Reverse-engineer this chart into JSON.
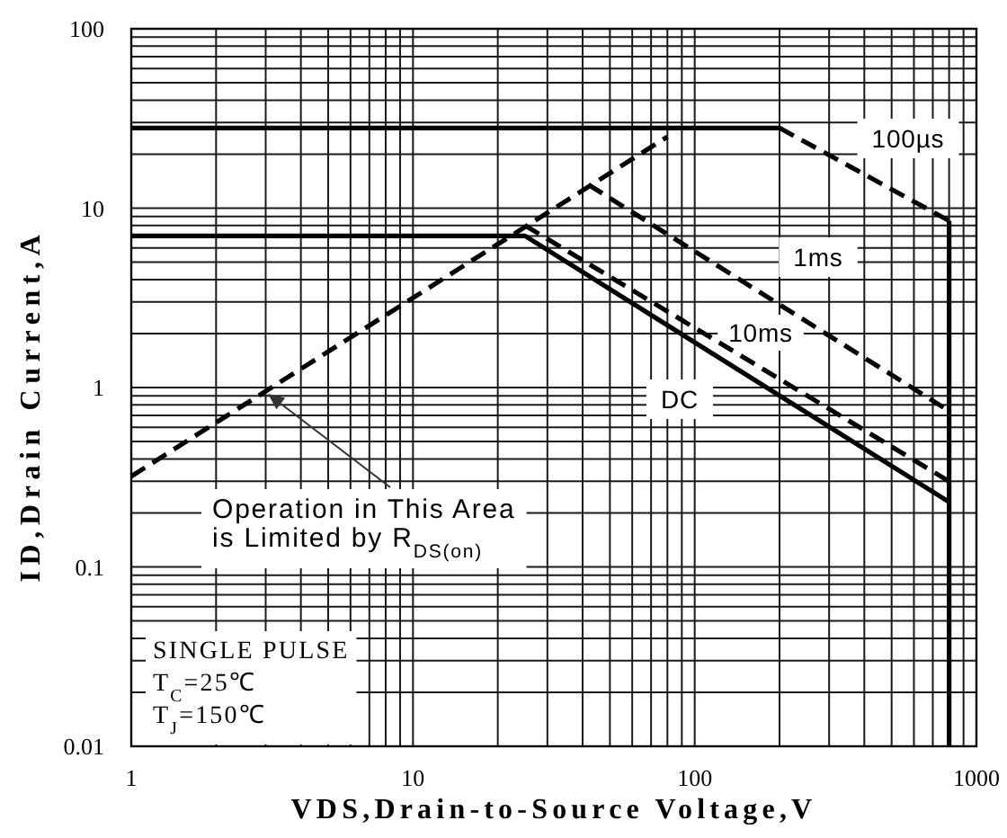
{
  "chart_data": {
    "type": "line",
    "xlabel": "VDS,Drain-to-Source Voltage,V",
    "ylabel": "ID,Drain Current,A",
    "log": "xy",
    "grid": true,
    "xlim": [
      1,
      1000
    ],
    "ylim": [
      0.01,
      100
    ],
    "xticks": [
      1,
      {
        "value": 2,
        "label": null
      },
      {
        "value": 3,
        "label": null
      },
      {
        "value": 4,
        "label": null
      },
      {
        "value": 5,
        "label": null
      },
      {
        "value": 6,
        "label": null
      },
      {
        "value": 7,
        "label": null
      },
      {
        "value": 8,
        "label": null
      },
      {
        "value": 9,
        "label": null
      },
      10,
      {
        "value": 20,
        "label": null
      },
      {
        "value": 30,
        "label": null
      },
      {
        "value": 40,
        "label": null
      },
      {
        "value": 50,
        "label": null
      },
      {
        "value": 60,
        "label": null
      },
      {
        "value": 70,
        "label": null
      },
      {
        "value": 80,
        "label": null
      },
      {
        "value": 90,
        "label": null
      },
      100,
      {
        "value": 200,
        "label": null
      },
      {
        "value": 300,
        "label": null
      },
      {
        "value": 400,
        "label": null
      },
      {
        "value": 500,
        "label": null
      },
      {
        "value": 600,
        "label": null
      },
      {
        "value": 700,
        "label": null
      },
      {
        "value": 800,
        "label": null
      },
      {
        "value": 900,
        "label": null
      },
      1000
    ],
    "yticks": [
      0.01,
      {
        "value": 0.02,
        "label": null
      },
      {
        "value": 0.03,
        "label": null
      },
      {
        "value": 0.04,
        "label": null
      },
      {
        "value": 0.05,
        "label": null
      },
      {
        "value": 0.06,
        "label": null
      },
      {
        "value": 0.07,
        "label": null
      },
      {
        "value": 0.08,
        "label": null
      },
      {
        "value": 0.09,
        "label": null
      },
      0.1,
      {
        "value": 0.2,
        "label": null
      },
      {
        "value": 0.3,
        "label": null
      },
      {
        "value": 0.4,
        "label": null
      },
      {
        "value": 0.5,
        "label": null
      },
      {
        "value": 0.6,
        "label": null
      },
      {
        "value": 0.7,
        "label": null
      },
      {
        "value": 0.8,
        "label": null
      },
      {
        "value": 0.9,
        "label": null
      },
      1,
      {
        "value": 2,
        "label": null
      },
      {
        "value": 3,
        "label": null
      },
      {
        "value": 4,
        "label": null
      },
      {
        "value": 5,
        "label": null
      },
      {
        "value": 6,
        "label": null
      },
      {
        "value": 7,
        "label": null
      },
      {
        "value": 8,
        "label": null
      },
      {
        "value": 9,
        "label": null
      },
      10,
      {
        "value": 20,
        "label": null
      },
      {
        "value": 30,
        "label": null
      },
      {
        "value": 40,
        "label": null
      },
      {
        "value": 50,
        "label": null
      },
      {
        "value": 60,
        "label": null
      },
      {
        "value": 70,
        "label": null
      },
      {
        "value": 80,
        "label": null
      },
      {
        "value": 90,
        "label": null
      },
      100
    ],
    "series": [
      {
        "color": "#000000",
        "line_style": "dashed",
        "x": [
          1,
          80
        ],
        "values": [
          0.32,
          25
        ]
      },
      {
        "color": "#000000",
        "line_style": "solid",
        "x": [
          1,
          200
        ],
        "values": [
          28,
          28
        ]
      },
      {
        "color": "#000000",
        "line_style": "dashed",
        "x": [
          200,
          800
        ],
        "values": [
          28,
          8.5
        ]
      },
      {
        "color": "#000000",
        "line_style": "solid",
        "x": [
          800,
          800
        ],
        "values": [
          8.5,
          0.01
        ]
      },
      {
        "color": "#000000",
        "line_style": "dashed",
        "x": [
          42,
          800
        ],
        "values": [
          13.5,
          0.74
        ]
      },
      {
        "color": "#000000",
        "line_style": "dashed",
        "x": [
          25,
          800
        ],
        "values": [
          8,
          0.3
        ]
      },
      {
        "color": "#000000",
        "line_style": "solid",
        "x": [
          1,
          25,
          800
        ],
        "values": [
          7,
          7,
          0.23
        ]
      }
    ],
    "annotations": [
      "100µs",
      "1ms",
      "10ms",
      "DC",
      "Operation in This Area\nis Limited by R$_{DS(on)}$",
      "SINGLE PULSE\nT$_{C}$=25℃\nT$_{J}$=150℃"
    ]
  }
}
